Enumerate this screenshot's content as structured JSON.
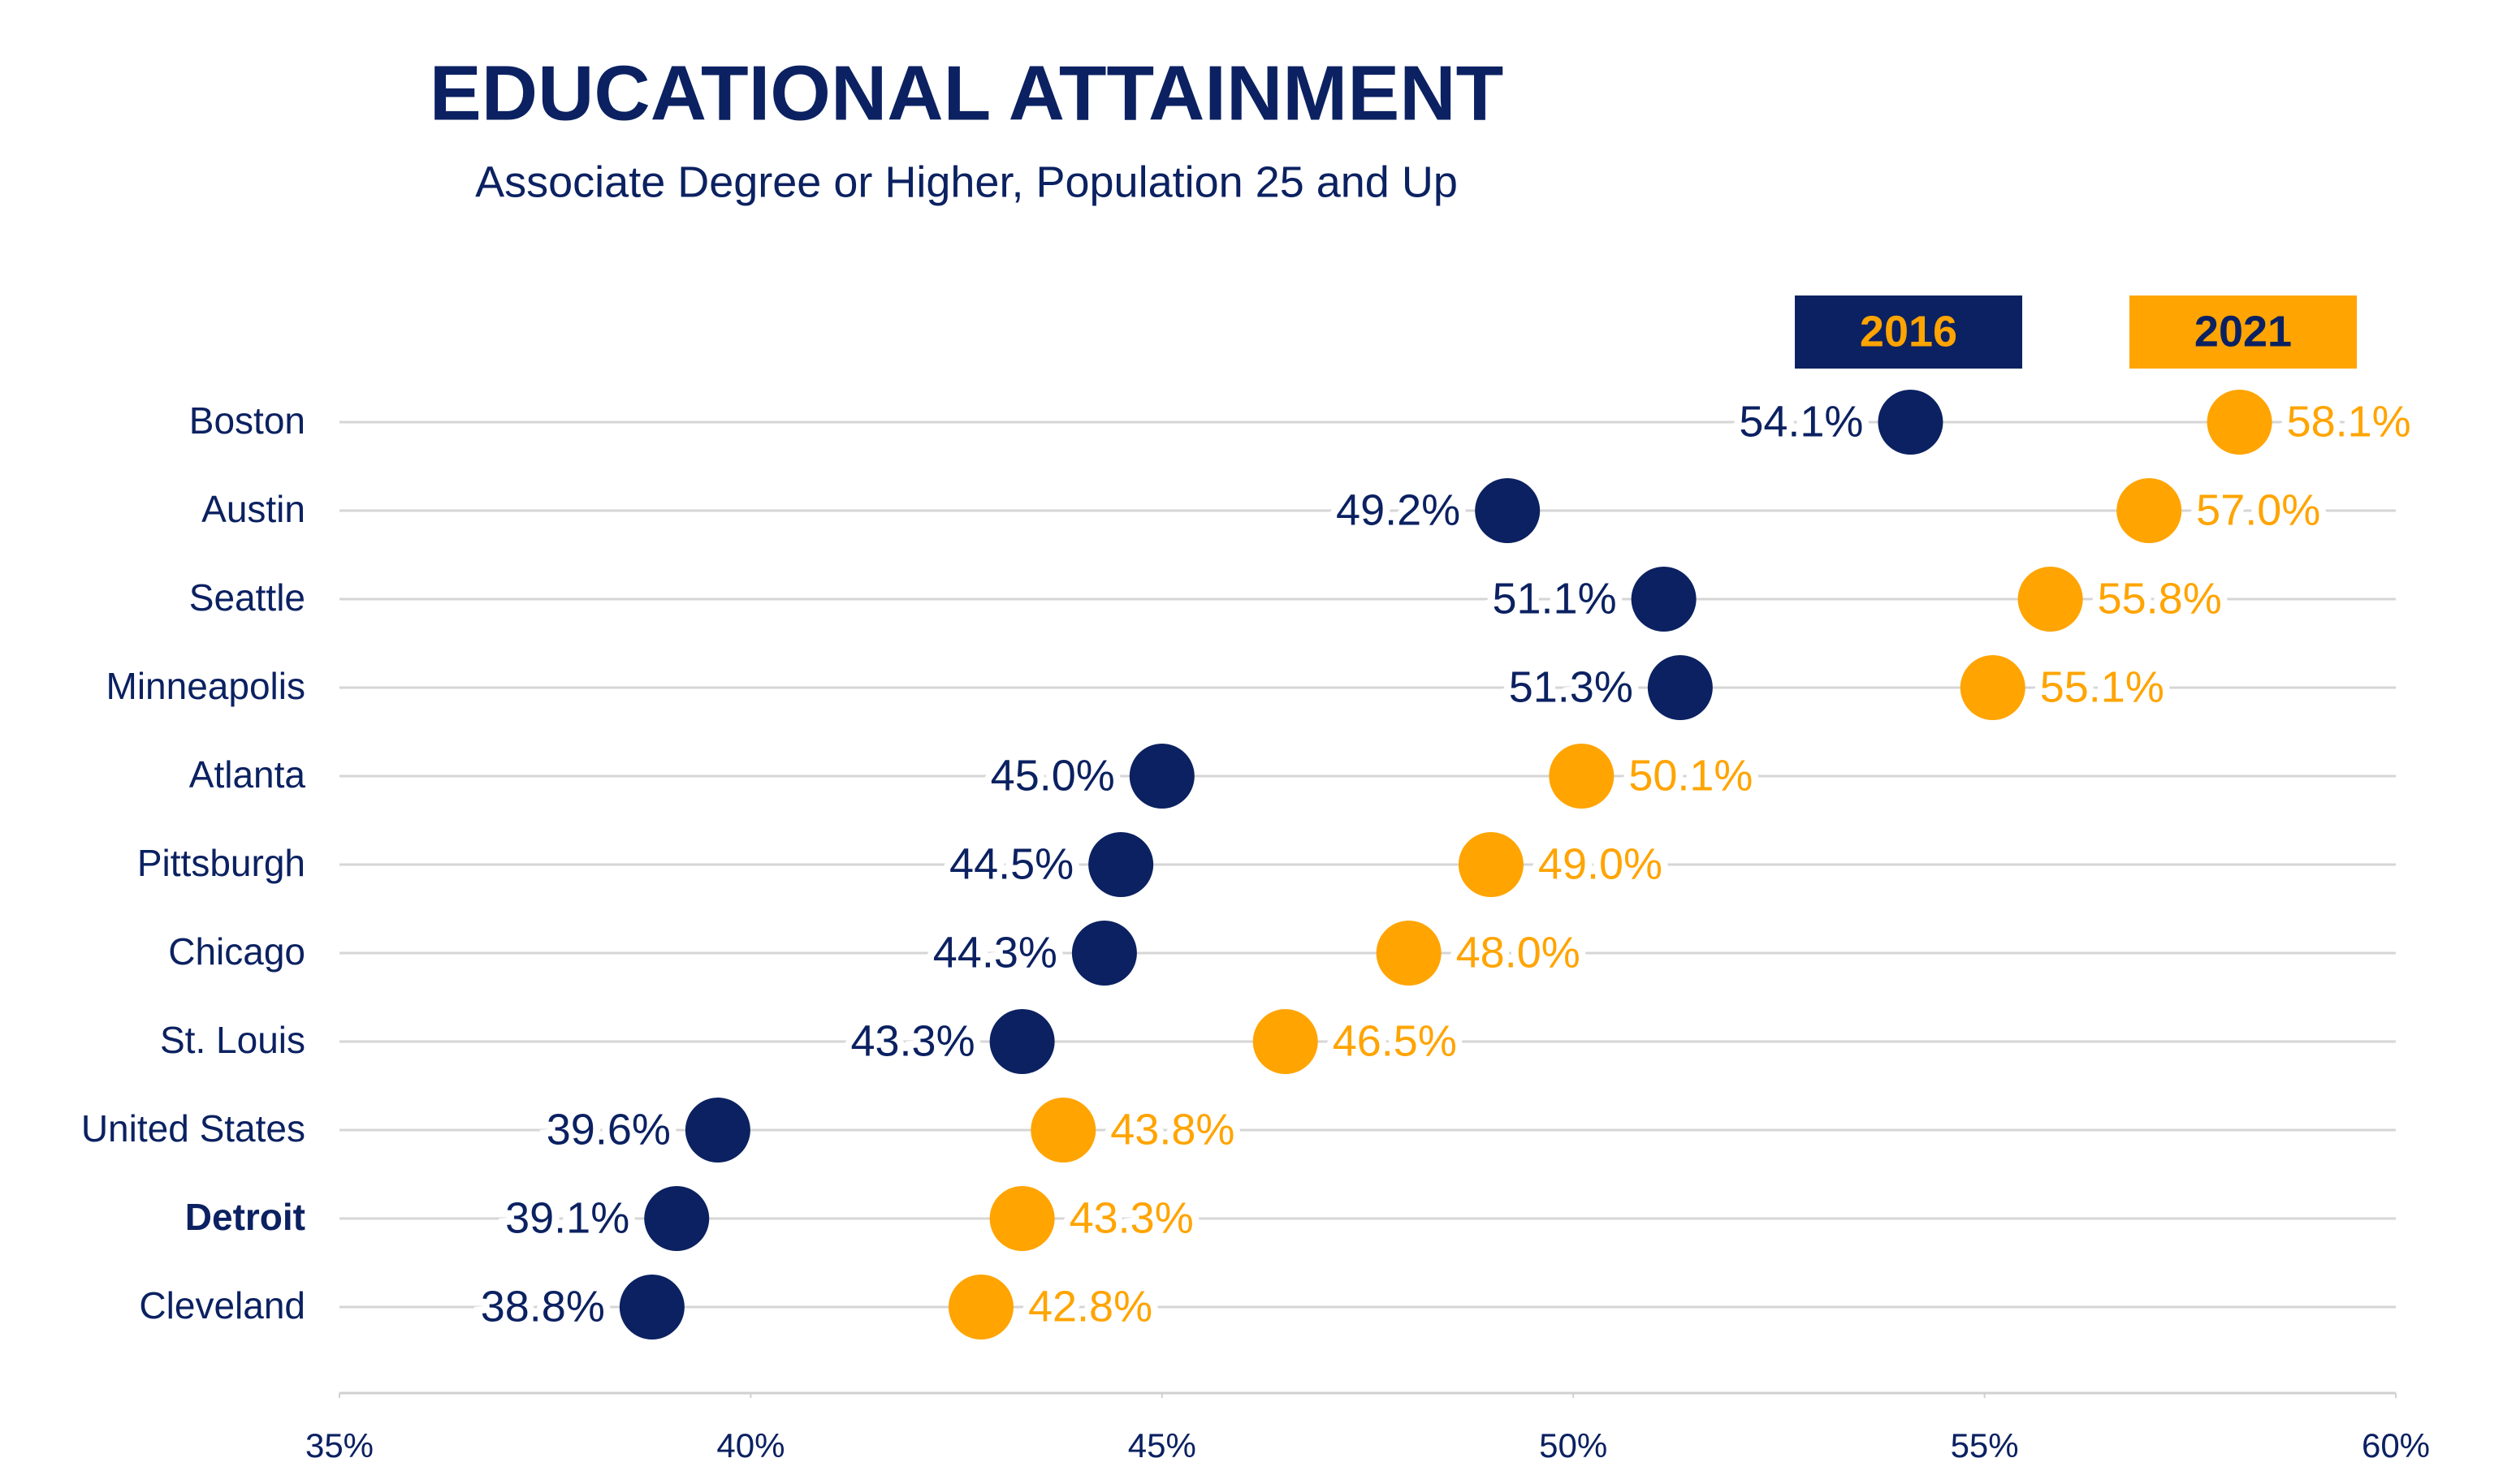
{
  "chart_data": {
    "type": "dot",
    "title": "EDUCATIONAL ATTAINMENT",
    "subtitle": "Associate Degree or Higher, Population 25 and Up",
    "categories": [
      "Boston",
      "Austin",
      "Seattle",
      "Minneapolis",
      "Atlanta",
      "Pittsburgh",
      "Chicago",
      "St. Louis",
      "United States",
      "Detroit",
      "Cleveland"
    ],
    "highlight_category": "Detroit",
    "series": [
      {
        "name": "2016",
        "color": "#0b2161",
        "label_color": "#ffa400",
        "values": [
          54.1,
          49.2,
          51.1,
          51.3,
          45.0,
          44.5,
          44.3,
          43.3,
          39.6,
          39.1,
          38.8
        ],
        "value_labels": [
          "54.1%",
          "49.2%",
          "51.1%",
          "51.3%",
          "45.0%",
          "44.5%",
          "44.3%",
          "43.3%",
          "39.6%",
          "39.1%",
          "38.8%"
        ]
      },
      {
        "name": "2021",
        "color": "#ffa400",
        "label_color": "#0b2161",
        "values": [
          58.1,
          57.0,
          55.8,
          55.1,
          50.1,
          49.0,
          48.0,
          46.5,
          43.8,
          43.3,
          42.8
        ],
        "value_labels": [
          "58.1%",
          "57.0%",
          "55.8%",
          "55.1%",
          "50.1%",
          "49.0%",
          "48.0%",
          "46.5%",
          "43.8%",
          "43.3%",
          "42.8%"
        ]
      }
    ],
    "xlim": [
      35,
      60
    ],
    "xticks": [
      {
        "value": 35,
        "label": "35%"
      },
      {
        "value": 40,
        "label": "40%"
      },
      {
        "value": 45,
        "label": "45%"
      },
      {
        "value": 50,
        "label": "50%"
      },
      {
        "value": 55,
        "label": "55%"
      },
      {
        "value": 60,
        "label": "60%"
      }
    ],
    "legend": "top-right"
  }
}
